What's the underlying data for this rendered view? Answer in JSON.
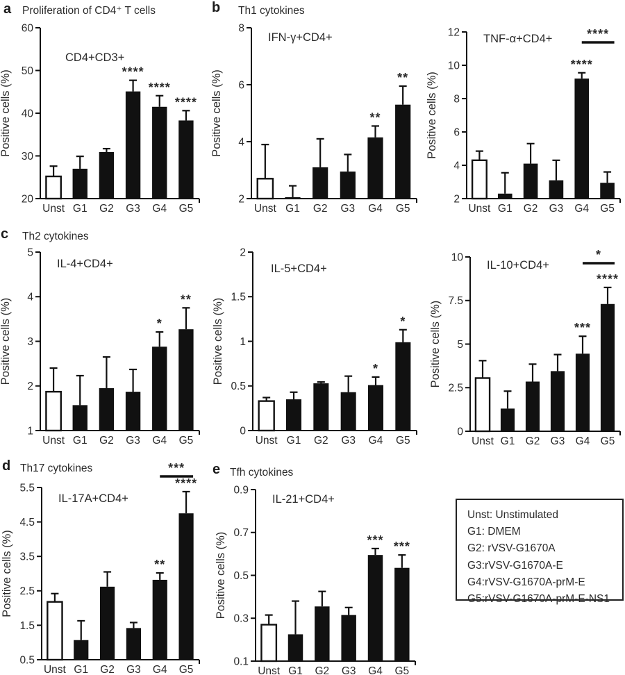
{
  "colors": {
    "ink": "#111111",
    "text": "#2b2b2b",
    "background": "#ffffff",
    "open_bar_fill": "#ffffff"
  },
  "panels": [
    {
      "letter": "a",
      "heading": "Proliferation of CD4⁺ T cells"
    },
    {
      "letter": "b",
      "heading": "Th1 cytokines"
    },
    {
      "letter": "c",
      "heading": "Th2 cytokines"
    },
    {
      "letter": "d",
      "heading": "Th17 cytokines"
    },
    {
      "letter": "e",
      "heading": "Tfh cytokines"
    }
  ],
  "chart_data": [
    {
      "id": "a",
      "panel": "a",
      "type": "bar",
      "inner_label": "CD4+CD3+",
      "ylabel": "Positive cells (%)",
      "categories": [
        "Unst",
        "G1",
        "G2",
        "G3",
        "G4",
        "G5"
      ],
      "ylim": [
        20,
        60
      ],
      "yticks": [
        "20",
        "30",
        "40",
        "50",
        "60"
      ],
      "values": [
        25.2,
        27.0,
        30.9,
        45.1,
        41.5,
        38.3
      ],
      "errors_upper": [
        2.4,
        2.9,
        0.8,
        2.6,
        2.6,
        2.3
      ],
      "sig_labels": [
        "",
        "",
        "",
        "****",
        "****",
        "****"
      ],
      "open_bar_index": 0,
      "bracket": null
    },
    {
      "id": "b1",
      "panel": "b",
      "type": "bar",
      "inner_label": "IFN-γ+CD4+",
      "ylabel": "Positive cells (%)",
      "categories": [
        "Unst",
        "G1",
        "G2",
        "G3",
        "G4",
        "G5"
      ],
      "ylim": [
        2,
        8
      ],
      "yticks": [
        "2",
        "4",
        "6",
        "8"
      ],
      "values": [
        2.7,
        2.05,
        3.1,
        2.95,
        4.15,
        5.3
      ],
      "errors_upper": [
        1.2,
        0.4,
        1.0,
        0.6,
        0.4,
        0.65
      ],
      "sig_labels": [
        "",
        "",
        "",
        "",
        "**",
        "**"
      ],
      "open_bar_index": 0,
      "bracket": null
    },
    {
      "id": "b2",
      "panel": "b",
      "type": "bar",
      "inner_label": "TNF-α+CD4+",
      "ylabel": "Positive cells (%)",
      "categories": [
        "Unst",
        "G1",
        "G2",
        "G3",
        "G4",
        "G5"
      ],
      "ylim": [
        2,
        12
      ],
      "yticks": [
        "2",
        "4",
        "6",
        "8",
        "10",
        "12"
      ],
      "values": [
        4.3,
        2.3,
        4.1,
        3.1,
        9.2,
        2.95
      ],
      "errors_upper": [
        0.55,
        1.25,
        1.2,
        1.2,
        0.35,
        0.65
      ],
      "sig_labels": [
        "",
        "",
        "",
        "",
        "****",
        ""
      ],
      "open_bar_index": 0,
      "bracket": {
        "from_index": 4,
        "to_index": 5,
        "label": "****"
      }
    },
    {
      "id": "c1",
      "panel": "c",
      "type": "bar",
      "inner_label": "IL-4+CD4+",
      "ylabel": "Positive cells (%)",
      "categories": [
        "Unst",
        "G1",
        "G2",
        "G3",
        "G4",
        "G5"
      ],
      "ylim": [
        1,
        5
      ],
      "yticks": [
        "1",
        "2",
        "3",
        "4",
        "5"
      ],
      "values": [
        1.87,
        1.57,
        1.95,
        1.87,
        2.88,
        3.27
      ],
      "errors_upper": [
        0.53,
        0.66,
        0.7,
        0.5,
        0.33,
        0.48
      ],
      "sig_labels": [
        "",
        "",
        "",
        "",
        "*",
        "**"
      ],
      "open_bar_index": 0,
      "bracket": null
    },
    {
      "id": "c2",
      "panel": "c",
      "type": "bar",
      "inner_label": "IL-5+CD4+",
      "ylabel": "Positive cells (%)",
      "categories": [
        "Unst",
        "G1",
        "G2",
        "G3",
        "G4",
        "G5"
      ],
      "ylim": [
        0,
        2
      ],
      "yticks": [
        "0",
        "0.5",
        "1",
        "1.5",
        "2"
      ],
      "values": [
        0.33,
        0.35,
        0.53,
        0.43,
        0.51,
        0.99
      ],
      "errors_upper": [
        0.04,
        0.08,
        0.015,
        0.18,
        0.09,
        0.14
      ],
      "sig_labels": [
        "",
        "",
        "",
        "",
        "*",
        "*"
      ],
      "open_bar_index": 0,
      "bracket": null
    },
    {
      "id": "c3",
      "panel": "c",
      "type": "bar",
      "inner_label": "IL-10+CD4+",
      "ylabel": "Positive cells (%)",
      "categories": [
        "Unst",
        "G1",
        "G2",
        "G3",
        "G4",
        "G5"
      ],
      "ylim": [
        0,
        10
      ],
      "yticks": [
        "0",
        "2.5",
        "5",
        "7.5",
        "10"
      ],
      "values": [
        3.05,
        1.3,
        2.85,
        3.45,
        4.45,
        7.3
      ],
      "errors_upper": [
        1.0,
        1.0,
        1.0,
        0.95,
        1.0,
        0.95
      ],
      "sig_labels": [
        "",
        "",
        "",
        "",
        "***",
        "****"
      ],
      "open_bar_index": 0,
      "bracket": {
        "from_index": 4,
        "to_index": 5,
        "label": "*"
      }
    },
    {
      "id": "d",
      "panel": "d",
      "type": "bar",
      "inner_label": "IL-17A+CD4+",
      "ylabel": "Positive cells (%)",
      "categories": [
        "Unst",
        "G1",
        "G2",
        "G3",
        "G4",
        "G5"
      ],
      "ylim": [
        0.5,
        5.5
      ],
      "yticks": [
        "0.5",
        "1.5",
        "2.5",
        "3.5",
        "4.5",
        "5.5"
      ],
      "values": [
        2.18,
        1.07,
        2.62,
        1.42,
        2.82,
        4.75
      ],
      "errors_upper": [
        0.24,
        0.56,
        0.43,
        0.16,
        0.2,
        0.63
      ],
      "sig_labels": [
        "",
        "",
        "",
        "",
        "**",
        "****"
      ],
      "open_bar_index": 0,
      "bracket": {
        "from_index": 4,
        "to_index": 5,
        "label": "***"
      }
    },
    {
      "id": "e",
      "panel": "e",
      "type": "bar",
      "inner_label": "IL-21+CD4+",
      "ylabel": "Positive cells (%)",
      "categories": [
        "Unst",
        "G1",
        "G2",
        "G3",
        "G4",
        "G5"
      ],
      "ylim": [
        0.1,
        0.9
      ],
      "yticks": [
        "0.1",
        "0.3",
        "0.5",
        "0.7",
        "0.9"
      ],
      "values": [
        0.27,
        0.225,
        0.355,
        0.315,
        0.595,
        0.535
      ],
      "errors_upper": [
        0.045,
        0.155,
        0.07,
        0.035,
        0.03,
        0.06
      ],
      "sig_labels": [
        "",
        "",
        "",
        "",
        "***",
        "***"
      ],
      "open_bar_index": 0,
      "bracket": null
    }
  ],
  "legend_box": {
    "lines": [
      "Unst: Unstimulated",
      "G1: DMEM",
      "G2: rVSV-G1670A",
      "G3:rVSV-G1670A-E",
      "G4:rVSV-G1670A-prM-E",
      "G5:rVSV-G1670A-prM-E-NS1"
    ]
  }
}
